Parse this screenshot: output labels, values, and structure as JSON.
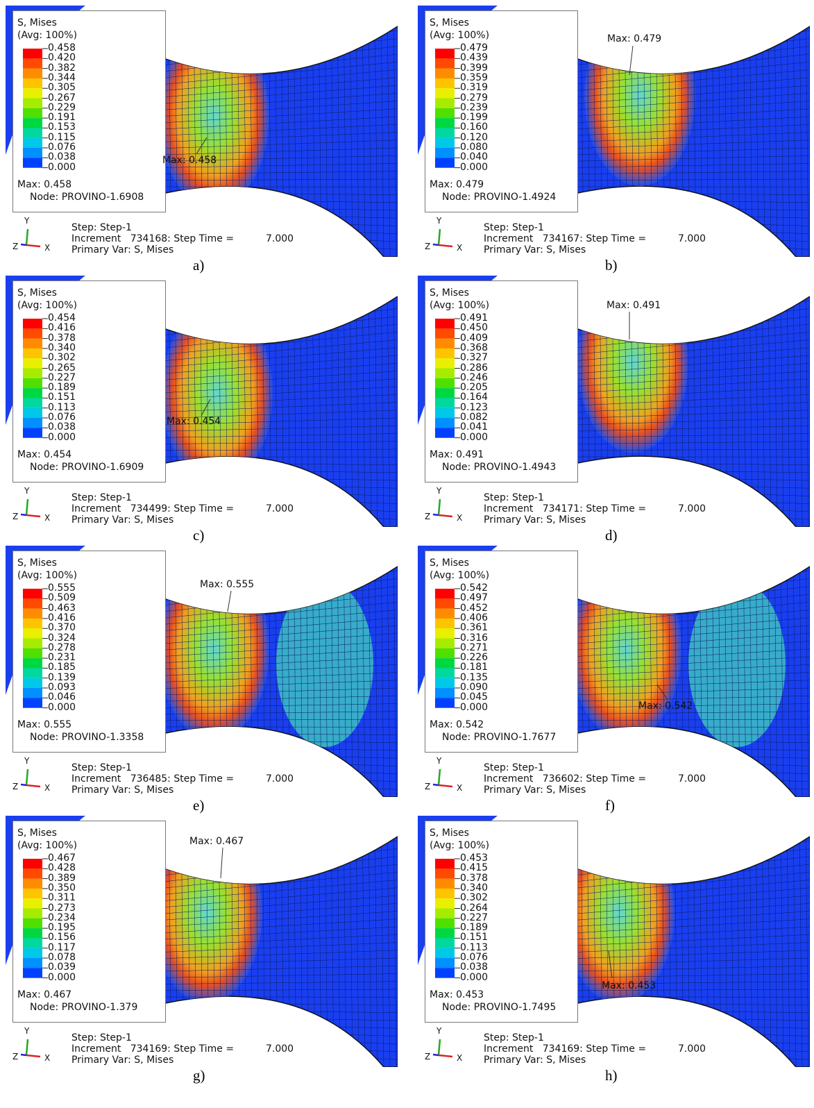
{
  "panels": [
    {
      "caption": "a)",
      "legend": {
        "title": "S, Mises",
        "avg": "(Avg: 100%)",
        "values": [
          "0.458",
          "0.420",
          "0.382",
          "0.344",
          "0.305",
          "0.267",
          "0.229",
          "0.191",
          "0.153",
          "0.115",
          "0.076",
          "0.038",
          "0.000"
        ],
        "max": "Max: 0.458",
        "node": "Node: PROVINO-1.6908"
      },
      "max_label": "Max: 0.458",
      "triad": {
        "y": "Y",
        "z": "Z",
        "x": "X"
      },
      "step": "Step: Step-1",
      "increment": "Increment   734168: Step Time =",
      "time": "7.000",
      "primary_var": "Primary Var: S, Mises"
    },
    {
      "caption": "b)",
      "legend": {
        "title": "S, Mises",
        "avg": "(Avg: 100%)",
        "values": [
          "0.479",
          "0.439",
          "0.399",
          "0.359",
          "0.319",
          "0.279",
          "0.239",
          "0.199",
          "0.160",
          "0.120",
          "0.080",
          "0.040",
          "0.000"
        ],
        "max": "Max: 0.479",
        "node": "Node: PROVINO-1.4924"
      },
      "max_label": "Max: 0.479",
      "triad": {
        "y": "Y",
        "z": "Z",
        "x": "X"
      },
      "step": "Step: Step-1",
      "increment": "Increment   734167: Step Time =",
      "time": "7.000",
      "primary_var": "Primary Var: S, Mises"
    },
    {
      "caption": "c)",
      "legend": {
        "title": "S, Mises",
        "avg": "(Avg: 100%)",
        "values": [
          "0.454",
          "0.416",
          "0.378",
          "0.340",
          "0.302",
          "0.265",
          "0.227",
          "0.189",
          "0.151",
          "0.113",
          "0.076",
          "0.038",
          "0.000"
        ],
        "max": "Max: 0.454",
        "node": "Node: PROVINO-1.6909"
      },
      "max_label": "Max: 0.454",
      "triad": {
        "y": "Y",
        "z": "Z",
        "x": "X"
      },
      "step": "Step: Step-1",
      "increment": "Increment   734499: Step Time =",
      "time": "7.000",
      "primary_var": "Primary Var: S, Mises"
    },
    {
      "caption": "d)",
      "legend": {
        "title": "S, Mises",
        "avg": "(Avg: 100%)",
        "values": [
          "0.491",
          "0.450",
          "0.409",
          "0.368",
          "0.327",
          "0.286",
          "0.246",
          "0.205",
          "0.164",
          "0.123",
          "0.082",
          "0.041",
          "0.000"
        ],
        "max": "Max: 0.491",
        "node": "Node: PROVINO-1.4943"
      },
      "max_label": "Max: 0.491",
      "triad": {
        "y": "Y",
        "z": "Z",
        "x": "X"
      },
      "step": "Step: Step-1",
      "increment": "Increment   734171: Step Time =",
      "time": "7.000",
      "primary_var": "Primary Var: S, Mises"
    },
    {
      "caption": "e)",
      "legend": {
        "title": "S, Mises",
        "avg": "(Avg: 100%)",
        "values": [
          "0.555",
          "0.509",
          "0.463",
          "0.416",
          "0.370",
          "0.324",
          "0.278",
          "0.231",
          "0.185",
          "0.139",
          "0.093",
          "0.046",
          "0.000"
        ],
        "max": "Max: 0.555",
        "node": "Node: PROVINO-1.3358"
      },
      "max_label": "Max: 0.555",
      "triad": {
        "y": "Y",
        "z": "Z",
        "x": "X"
      },
      "step": "Step: Step-1",
      "increment": "Increment   736485: Step Time =",
      "time": "7.000",
      "primary_var": "Primary Var: S, Mises"
    },
    {
      "caption": "f)",
      "legend": {
        "title": "S, Mises",
        "avg": "(Avg: 100%)",
        "values": [
          "0.542",
          "0.497",
          "0.452",
          "0.406",
          "0.361",
          "0.316",
          "0.271",
          "0.226",
          "0.181",
          "0.135",
          "0.090",
          "0.045",
          "0.000"
        ],
        "max": "Max: 0.542",
        "node": "Node: PROVINO-1.7677"
      },
      "max_label": "Max: 0.542",
      "triad": {
        "y": "Y",
        "z": "Z",
        "x": "X"
      },
      "step": "Step: Step-1",
      "increment": "Increment   736602: Step Time =",
      "time": "7.000",
      "primary_var": "Primary Var: S, Mises"
    },
    {
      "caption": "g)",
      "legend": {
        "title": "S, Mises",
        "avg": "(Avg: 100%)",
        "values": [
          "0.467",
          "0.428",
          "0.389",
          "0.350",
          "0.311",
          "0.273",
          "0.234",
          "0.195",
          "0.156",
          "0.117",
          "0.078",
          "0.039",
          "0.000"
        ],
        "max": "Max: 0.467",
        "node": "Node: PROVINO-1.379"
      },
      "max_label": "Max: 0.467",
      "triad": {
        "y": "Y",
        "z": "Z",
        "x": "X"
      },
      "step": "Step: Step-1",
      "increment": "Increment   734169: Step Time =",
      "time": "7.000",
      "primary_var": "Primary Var: S, Mises"
    },
    {
      "caption": "h)",
      "legend": {
        "title": "S, Mises",
        "avg": "(Avg: 100%)",
        "values": [
          "0.453",
          "0.415",
          "0.378",
          "0.340",
          "0.302",
          "0.264",
          "0.227",
          "0.189",
          "0.151",
          "0.113",
          "0.076",
          "0.038",
          "0.000"
        ],
        "max": "Max: 0.453",
        "node": "Node: PROVINO-1.7495"
      },
      "max_label": "Max: 0.453",
      "triad": {
        "y": "Y",
        "z": "Z",
        "x": "X"
      },
      "step": "Step: Step-1",
      "increment": "Increment   734169: Step Time =",
      "time": "7.000",
      "primary_var": "Primary Var: S, Mises"
    }
  ]
}
